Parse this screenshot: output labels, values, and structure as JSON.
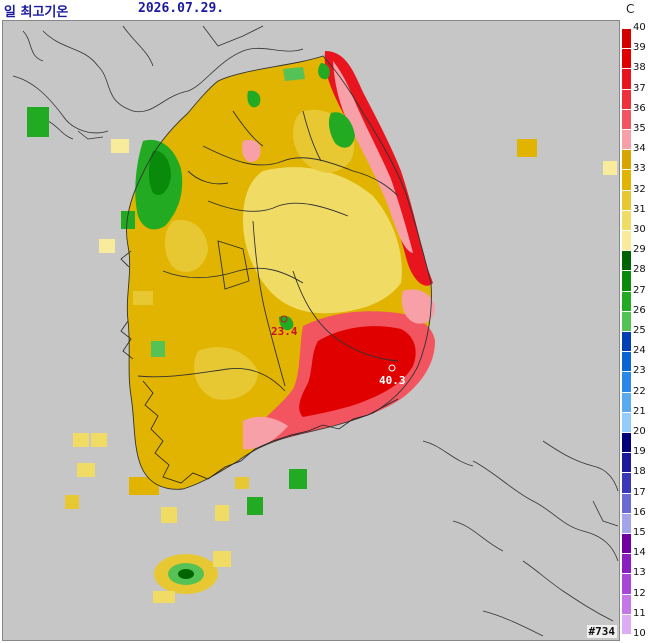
{
  "header": {
    "title": "일 최고기온",
    "date": "2026.07.29.",
    "unit": "C"
  },
  "legend": {
    "ticks": [
      "40",
      "39",
      "38",
      "37",
      "36",
      "35",
      "34",
      "33",
      "32",
      "31",
      "30",
      "29",
      "28",
      "27",
      "26",
      "25",
      "24",
      "23",
      "22",
      "21",
      "20",
      "19",
      "18",
      "17",
      "16",
      "15",
      "14",
      "13",
      "12",
      "11",
      "10"
    ],
    "colors": [
      "#d40000",
      "#e00000",
      "#e8141e",
      "#ef2f3a",
      "#f25560",
      "#f7a0a8",
      "#d9a400",
      "#e0b400",
      "#e8c832",
      "#f0dc64",
      "#f8ec9c",
      "#006400",
      "#0a8a0a",
      "#22aa22",
      "#55c255",
      "#0040b4",
      "#0a64d2",
      "#2a88e8",
      "#5aaaf0",
      "#96ccf8",
      "#00007a",
      "#1a1a9a",
      "#3838b8",
      "#6a6ad2",
      "#a4a4e8",
      "#7000a0",
      "#8a1ec0",
      "#a846d8",
      "#c478e8",
      "#deacf4"
    ]
  },
  "stations": [
    {
      "label": "23.4",
      "color": "#c8102e"
    },
    {
      "label": "40.3",
      "color": "#ffffff"
    }
  ],
  "map_id": "#734"
}
